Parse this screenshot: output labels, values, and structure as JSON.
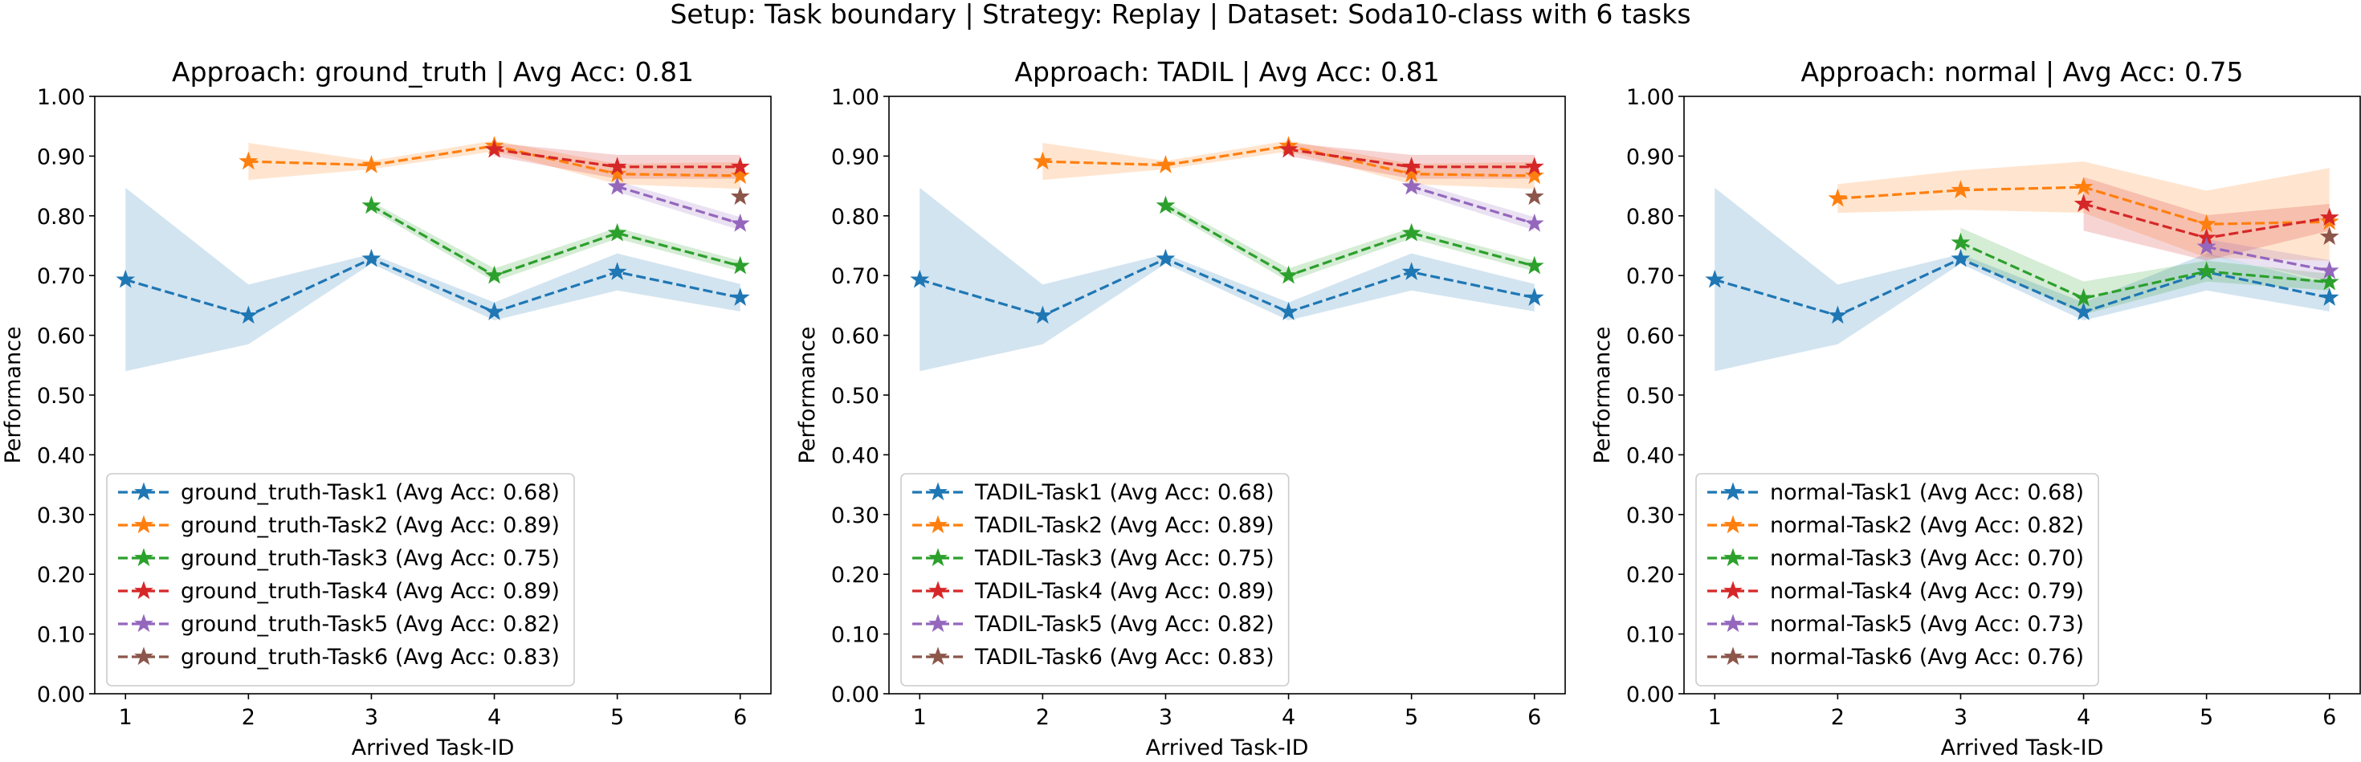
{
  "suptitle": "Setup: Task boundary | Strategy: Replay | Dataset: Soda10-class with 6 tasks",
  "colors": {
    "task1": "#1f77b4",
    "task2": "#ff7f0e",
    "task3": "#2ca02c",
    "task4": "#d62728",
    "task5": "#9467bd",
    "task6": "#8c564b"
  },
  "chart_data": [
    {
      "type": "line",
      "title": "Approach: ground_truth | Avg Acc: 0.81",
      "xlabel": "Arrived Task-ID",
      "ylabel": "Performance",
      "xlim": [
        0.75,
        6.25
      ],
      "ylim": [
        0,
        1
      ],
      "x_ticks": [
        1,
        2,
        3,
        4,
        5,
        6
      ],
      "y_ticks": [
        "0.00",
        "0.10",
        "0.20",
        "0.30",
        "0.40",
        "0.50",
        "0.60",
        "0.70",
        "0.80",
        "0.90",
        "1.00"
      ],
      "legend_position": "lower-left",
      "series": [
        {
          "name": "ground_truth-Task1 (Avg Acc: 0.68)",
          "x": [
            1,
            2,
            3,
            4,
            5,
            6
          ],
          "y": [
            0.693,
            0.633,
            0.728,
            0.639,
            0.706,
            0.663
          ],
          "lower": [
            0.54,
            0.585,
            0.72,
            0.625,
            0.675,
            0.64
          ],
          "upper": [
            0.847,
            0.685,
            0.736,
            0.655,
            0.737,
            0.686
          ]
        },
        {
          "name": "ground_truth-Task2 (Avg Acc: 0.89)",
          "x": [
            2,
            3,
            4,
            5,
            6
          ],
          "y": [
            0.891,
            0.885,
            0.917,
            0.87,
            0.867
          ],
          "lower": [
            0.86,
            0.878,
            0.908,
            0.853,
            0.845
          ],
          "upper": [
            0.922,
            0.892,
            0.926,
            0.887,
            0.89
          ]
        },
        {
          "name": "ground_truth-Task3 (Avg Acc: 0.75)",
          "x": [
            3,
            4,
            5,
            6
          ],
          "y": [
            0.817,
            0.7,
            0.771,
            0.716
          ],
          "lower": [
            0.81,
            0.69,
            0.762,
            0.707
          ],
          "upper": [
            0.824,
            0.712,
            0.78,
            0.725
          ]
        },
        {
          "name": "ground_truth-Task4 (Avg Acc: 0.89)",
          "x": [
            4,
            5,
            6
          ],
          "y": [
            0.911,
            0.882,
            0.882
          ],
          "lower": [
            0.9,
            0.862,
            0.862
          ],
          "upper": [
            0.922,
            0.902,
            0.902
          ]
        },
        {
          "name": "ground_truth-Task5 (Avg Acc: 0.82)",
          "x": [
            5,
            6
          ],
          "y": [
            0.849,
            0.787
          ],
          "lower": [
            0.84,
            0.776
          ],
          "upper": [
            0.858,
            0.798
          ]
        },
        {
          "name": "ground_truth-Task6 (Avg Acc: 0.83)",
          "x": [
            6
          ],
          "y": [
            0.832
          ],
          "lower": [
            0.832
          ],
          "upper": [
            0.832
          ]
        }
      ]
    },
    {
      "type": "line",
      "title": "Approach: TADIL | Avg Acc: 0.81",
      "xlabel": "Arrived Task-ID",
      "ylabel": "Performance",
      "xlim": [
        0.75,
        6.25
      ],
      "ylim": [
        0,
        1
      ],
      "x_ticks": [
        1,
        2,
        3,
        4,
        5,
        6
      ],
      "y_ticks": [
        "0.00",
        "0.10",
        "0.20",
        "0.30",
        "0.40",
        "0.50",
        "0.60",
        "0.70",
        "0.80",
        "0.90",
        "1.00"
      ],
      "legend_position": "lower-left",
      "series": [
        {
          "name": "TADIL-Task1 (Avg Acc: 0.68)",
          "x": [
            1,
            2,
            3,
            4,
            5,
            6
          ],
          "y": [
            0.693,
            0.633,
            0.728,
            0.639,
            0.706,
            0.663
          ],
          "lower": [
            0.54,
            0.585,
            0.72,
            0.625,
            0.675,
            0.64
          ],
          "upper": [
            0.847,
            0.685,
            0.736,
            0.655,
            0.737,
            0.686
          ]
        },
        {
          "name": "TADIL-Task2 (Avg Acc: 0.89)",
          "x": [
            2,
            3,
            4,
            5,
            6
          ],
          "y": [
            0.891,
            0.885,
            0.917,
            0.87,
            0.867
          ],
          "lower": [
            0.86,
            0.878,
            0.908,
            0.853,
            0.845
          ],
          "upper": [
            0.922,
            0.892,
            0.926,
            0.887,
            0.89
          ]
        },
        {
          "name": "TADIL-Task3 (Avg Acc: 0.75)",
          "x": [
            3,
            4,
            5,
            6
          ],
          "y": [
            0.817,
            0.7,
            0.771,
            0.716
          ],
          "lower": [
            0.81,
            0.69,
            0.762,
            0.707
          ],
          "upper": [
            0.824,
            0.712,
            0.78,
            0.725
          ]
        },
        {
          "name": "TADIL-Task4 (Avg Acc: 0.89)",
          "x": [
            4,
            5,
            6
          ],
          "y": [
            0.911,
            0.882,
            0.882
          ],
          "lower": [
            0.9,
            0.862,
            0.862
          ],
          "upper": [
            0.922,
            0.902,
            0.902
          ]
        },
        {
          "name": "TADIL-Task5 (Avg Acc: 0.82)",
          "x": [
            5,
            6
          ],
          "y": [
            0.849,
            0.787
          ],
          "lower": [
            0.84,
            0.776
          ],
          "upper": [
            0.858,
            0.798
          ]
        },
        {
          "name": "TADIL-Task6 (Avg Acc: 0.83)",
          "x": [
            6
          ],
          "y": [
            0.832
          ],
          "lower": [
            0.832
          ],
          "upper": [
            0.832
          ]
        }
      ]
    },
    {
      "type": "line",
      "title": "Approach: normal | Avg Acc: 0.75",
      "xlabel": "Arrived Task-ID",
      "ylabel": "Performance",
      "xlim": [
        0.75,
        6.25
      ],
      "ylim": [
        0,
        1
      ],
      "x_ticks": [
        1,
        2,
        3,
        4,
        5,
        6
      ],
      "y_ticks": [
        "0.00",
        "0.10",
        "0.20",
        "0.30",
        "0.40",
        "0.50",
        "0.60",
        "0.70",
        "0.80",
        "0.90",
        "1.00"
      ],
      "legend_position": "lower-left",
      "series": [
        {
          "name": "normal-Task1 (Avg Acc: 0.68)",
          "x": [
            1,
            2,
            3,
            4,
            5,
            6
          ],
          "y": [
            0.693,
            0.633,
            0.728,
            0.639,
            0.706,
            0.663
          ],
          "lower": [
            0.54,
            0.585,
            0.72,
            0.625,
            0.675,
            0.64
          ],
          "upper": [
            0.847,
            0.685,
            0.736,
            0.655,
            0.737,
            0.686
          ]
        },
        {
          "name": "normal-Task2 (Avg Acc: 0.82)",
          "x": [
            2,
            3,
            4,
            5,
            6
          ],
          "y": [
            0.829,
            0.843,
            0.848,
            0.786,
            0.79
          ],
          "lower": [
            0.805,
            0.81,
            0.805,
            0.73,
            0.725
          ],
          "upper": [
            0.853,
            0.876,
            0.891,
            0.842,
            0.88
          ]
        },
        {
          "name": "normal-Task3 (Avg Acc: 0.70)",
          "x": [
            3,
            4,
            5,
            6
          ],
          "y": [
            0.755,
            0.662,
            0.707,
            0.689
          ],
          "lower": [
            0.73,
            0.635,
            0.69,
            0.675
          ],
          "upper": [
            0.78,
            0.69,
            0.725,
            0.703
          ]
        },
        {
          "name": "normal-Task4 (Avg Acc: 0.79)",
          "x": [
            4,
            5,
            6
          ],
          "y": [
            0.82,
            0.763,
            0.797
          ],
          "lower": [
            0.775,
            0.725,
            0.775
          ],
          "upper": [
            0.865,
            0.801,
            0.82
          ]
        },
        {
          "name": "normal-Task5 (Avg Acc: 0.73)",
          "x": [
            5,
            6
          ],
          "y": [
            0.748,
            0.708
          ],
          "lower": [
            0.735,
            0.69
          ],
          "upper": [
            0.761,
            0.726
          ]
        },
        {
          "name": "normal-Task6 (Avg Acc: 0.76)",
          "x": [
            6
          ],
          "y": [
            0.765
          ],
          "lower": [
            0.765
          ],
          "upper": [
            0.765
          ]
        }
      ]
    }
  ]
}
